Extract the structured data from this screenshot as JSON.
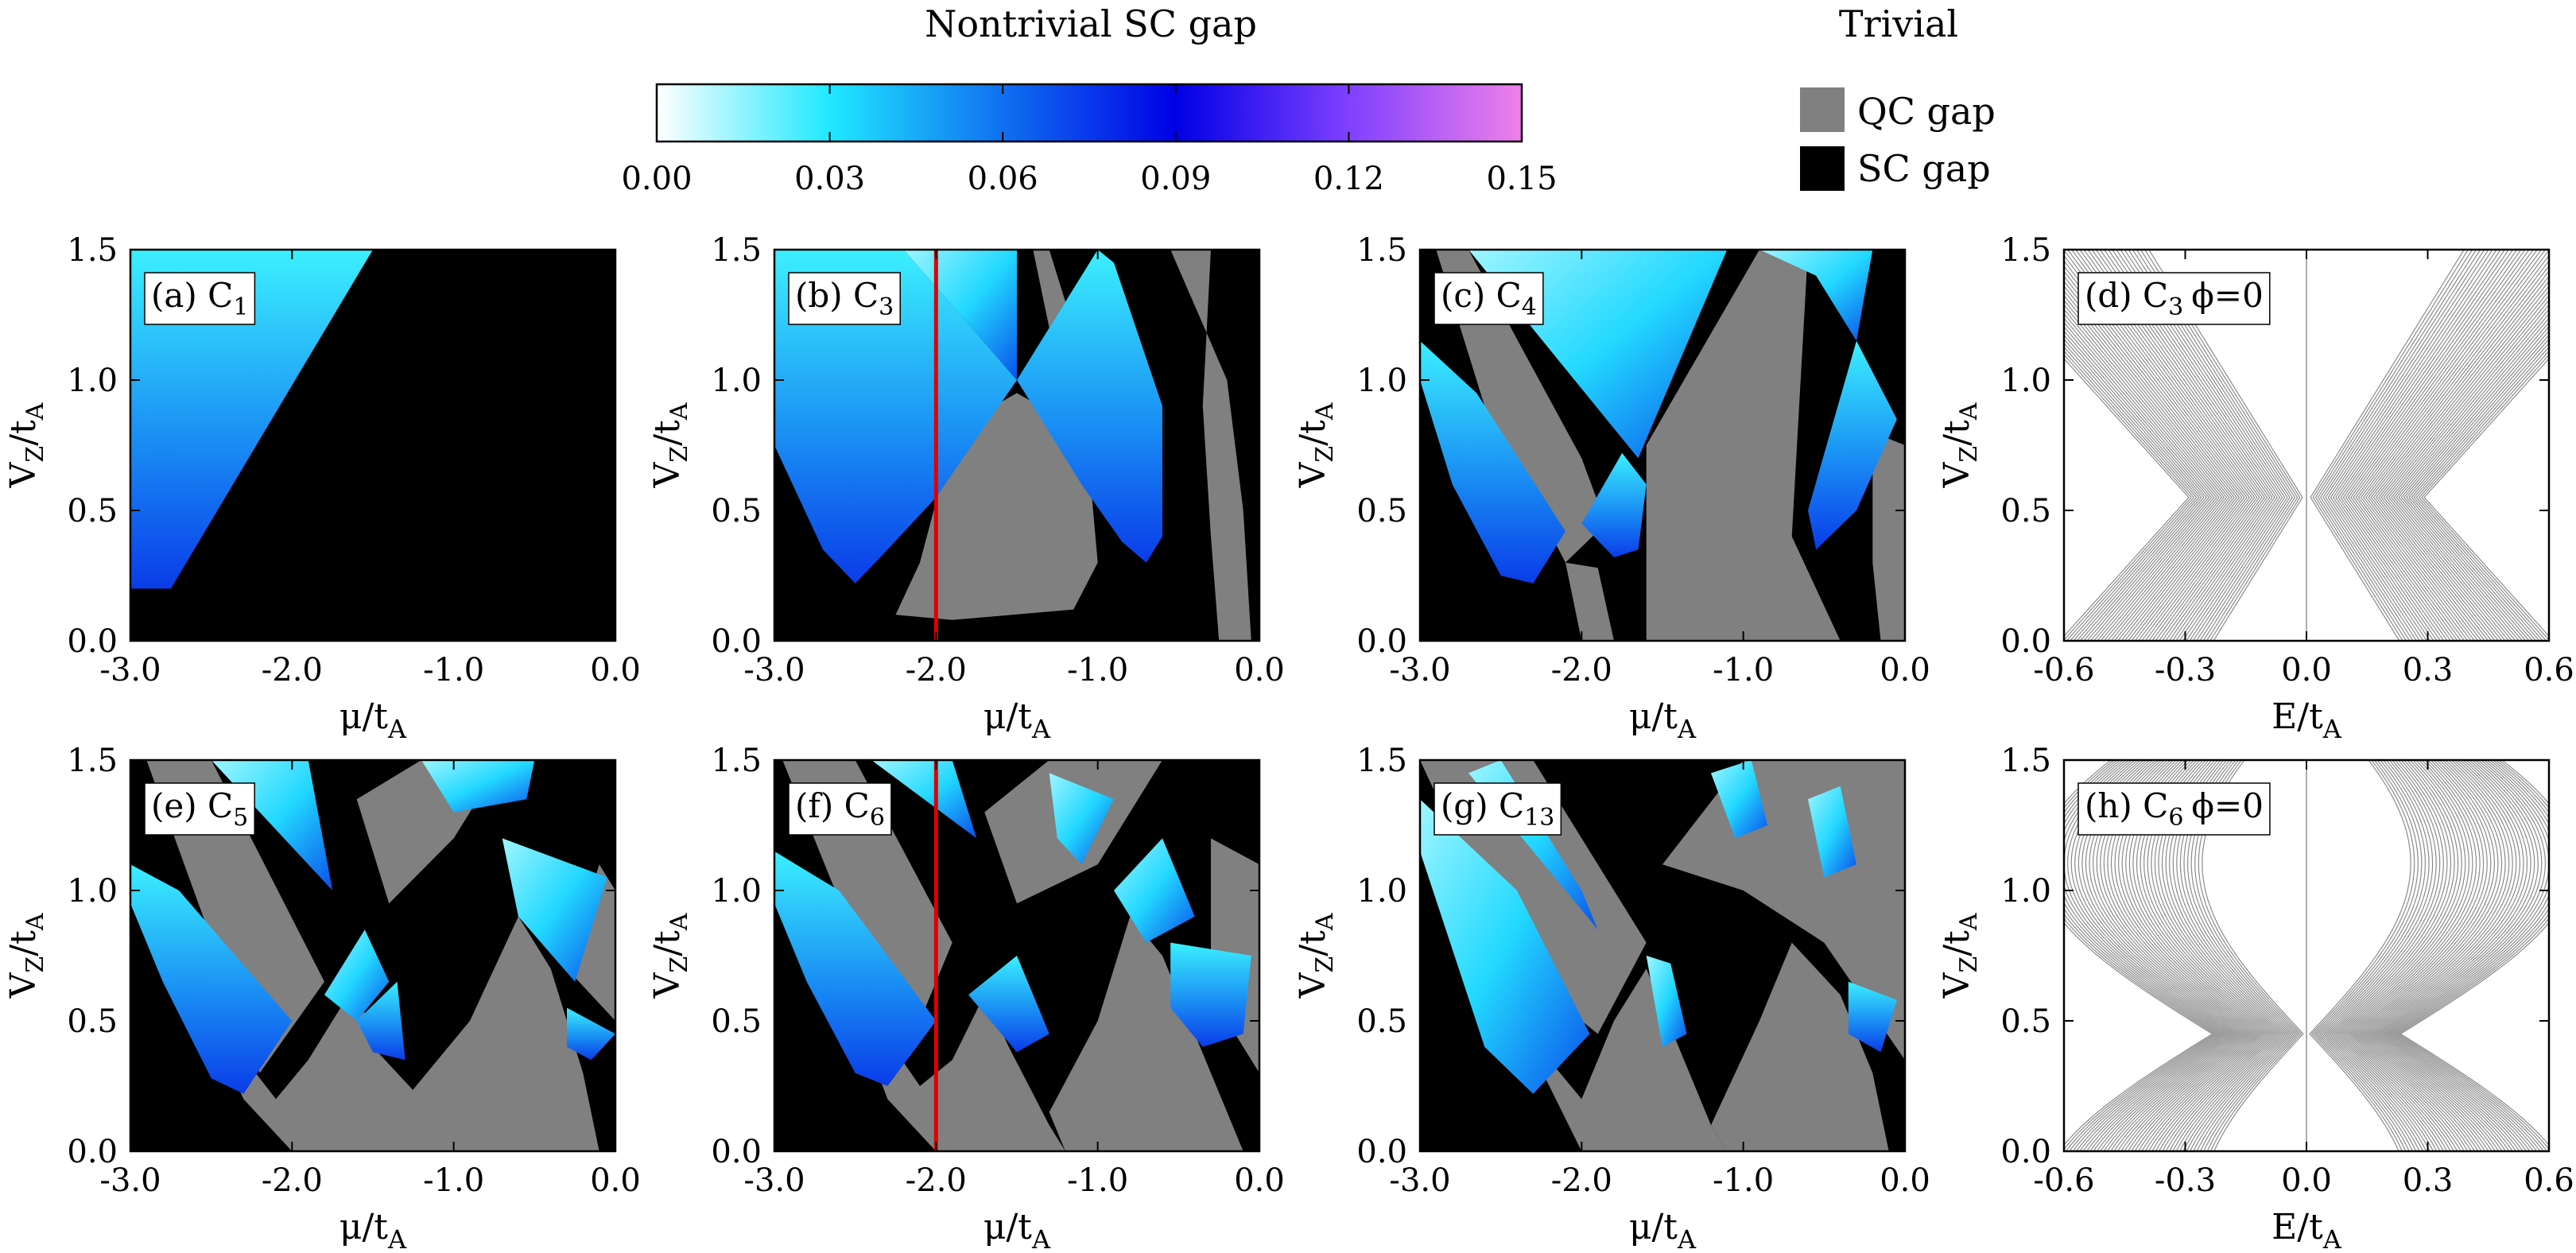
{
  "chart_data": {
    "type": "heatmap",
    "colorbar": {
      "title": "Nontrivial SC gap",
      "ticks": [
        "0.00",
        "0.03",
        "0.06",
        "0.09",
        "0.12",
        "0.15"
      ],
      "range": [
        0,
        0.15
      ],
      "stops": [
        "#ffffff",
        "#20e8ff",
        "#1070f0",
        "#0000e6",
        "#8040ff",
        "#ee80ea"
      ]
    },
    "legend": {
      "title": "Trivial",
      "entries": [
        {
          "label": "QC gap",
          "color": "#808080"
        },
        {
          "label": "SC gap",
          "color": "#000000"
        }
      ]
    },
    "phase_x_ticks": [
      "-3.0",
      "-2.0",
      "-1.0",
      "0.0"
    ],
    "spectrum_x_ticks": [
      "-0.6",
      "-0.3",
      "0.0",
      "0.3",
      "0.6"
    ],
    "y_ticks": [
      "0.0",
      "0.5",
      "1.0",
      "1.5"
    ],
    "xlim_mu": [
      -3.0,
      0.0
    ],
    "xlim_E": [
      -0.6,
      0.6
    ],
    "ylim": [
      0,
      1.5
    ],
    "xlabel_mu": "μ/t",
    "xlabel_E": "E/t",
    "ylabel": "V",
    "sub_A": "A",
    "sub_Z": "Z",
    "panels": [
      {
        "id": "a",
        "tag": "(a) C",
        "sub": "1",
        "kind": "phase",
        "cut_mu": null
      },
      {
        "id": "b",
        "tag": "(b) C",
        "sub": "3",
        "kind": "phase",
        "cut_mu": -2.0
      },
      {
        "id": "c",
        "tag": "(c) C",
        "sub": "4",
        "kind": "phase",
        "cut_mu": null
      },
      {
        "id": "d",
        "tag": "(d) C",
        "sub": "3",
        "phi": "ϕ=0",
        "kind": "spectrum"
      },
      {
        "id": "e",
        "tag": "(e) C",
        "sub": "5",
        "kind": "phase",
        "cut_mu": null
      },
      {
        "id": "f",
        "tag": "(f) C",
        "sub": "6",
        "kind": "phase",
        "cut_mu": -2.0
      },
      {
        "id": "g",
        "tag": "(g) C",
        "sub": "13",
        "kind": "phase",
        "cut_mu": null
      },
      {
        "id": "h",
        "tag": "(h) C",
        "sub": "6",
        "phi": "ϕ=0",
        "kind": "spectrum"
      }
    ]
  }
}
